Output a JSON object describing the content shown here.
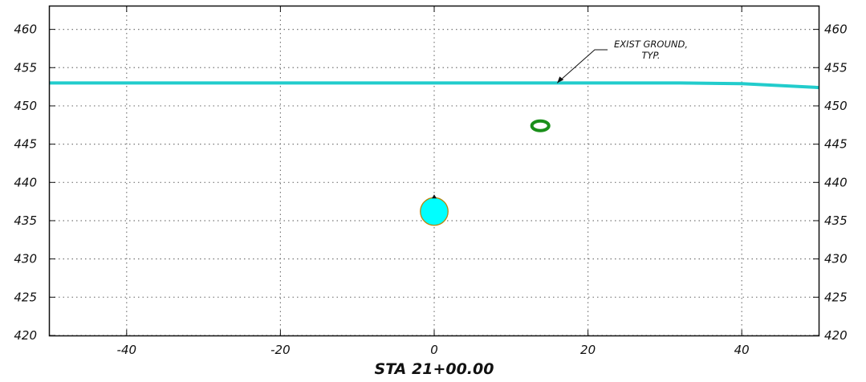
{
  "drawing": {
    "station_label": "STA 21+00.00",
    "annotation": {
      "line1": "EXIST GROUND,",
      "line2": "TYP."
    }
  },
  "chart_data": {
    "type": "cross-section",
    "xlim": [
      -50,
      50
    ],
    "ylim": [
      420,
      463
    ],
    "x_ticks": [
      -40,
      -20,
      0,
      20,
      40
    ],
    "x_tick_labels": [
      "-40",
      "-20",
      "0",
      "20",
      "40"
    ],
    "y_ticks": [
      420,
      425,
      430,
      435,
      440,
      445,
      450,
      455,
      460
    ],
    "y_tick_labels": [
      "420",
      "425",
      "430",
      "435",
      "440",
      "445",
      "450",
      "455",
      "460"
    ],
    "grid": true,
    "existing_ground": {
      "color": "#22cccc",
      "points": [
        [
          -50,
          453.0
        ],
        [
          32,
          453.0
        ],
        [
          40,
          452.9
        ],
        [
          50,
          452.4
        ]
      ]
    },
    "pipes": [
      {
        "name": "main-pipe",
        "x": 0,
        "y": 436.2,
        "diameter_ft": 3.6,
        "fill": "#00ffff",
        "stroke": "#b8860b"
      },
      {
        "name": "conduit-ring",
        "x": 13.8,
        "y": 447.4,
        "diameter_ft": 2.2,
        "fill": "none",
        "stroke": "#1a8f1a"
      }
    ],
    "leader_tip": [
      16.0,
      453.0
    ]
  }
}
